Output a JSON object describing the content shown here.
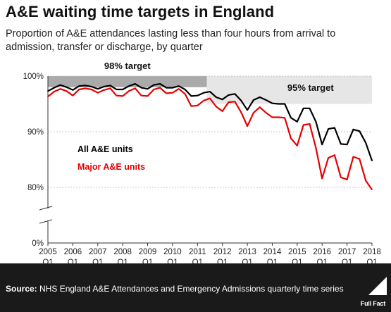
{
  "header": {
    "title": "A&E waiting time targets in England",
    "subtitle": "Proportion of A&E attendances lasting less than four hours from arrival to admission, transfer or discharge, by quarter"
  },
  "footer": {
    "source_label": "Source:",
    "source_text": "NHS England A&E Attendances and Emergency Admissions quarterly time series",
    "logo_text": "Full Fact"
  },
  "colors": {
    "all_units": "#000000",
    "major_units": "#e60000",
    "target_98_band": "#aaaaaa",
    "target_95_band": "#e6e6e6",
    "grid": "#c8c8c8",
    "footer_bg": "#1a1a1a"
  },
  "chart_data": {
    "type": "line",
    "ylim": [
      0,
      100
    ],
    "y_ticks": [
      {
        "value": 100,
        "label": "100%"
      },
      {
        "value": 90,
        "label": "90%"
      },
      {
        "value": 80,
        "label": "80%"
      },
      {
        "value": 0,
        "label": "0%"
      }
    ],
    "y_axis_break": "between 0% and 80%",
    "x_ticks": [
      {
        "year": "2005",
        "quarter": "Q1"
      },
      {
        "year": "2006",
        "quarter": "Q1"
      },
      {
        "year": "2007",
        "quarter": "Q1"
      },
      {
        "year": "2008",
        "quarter": "Q1"
      },
      {
        "year": "2009",
        "quarter": "Q1"
      },
      {
        "year": "2010",
        "quarter": "Q1"
      },
      {
        "year": "2011",
        "quarter": "Q1"
      },
      {
        "year": "2012",
        "quarter": "Q1"
      },
      {
        "year": "2013",
        "quarter": "Q1"
      },
      {
        "year": "2014",
        "quarter": "Q1"
      },
      {
        "year": "2015",
        "quarter": "Q1"
      },
      {
        "year": "2016",
        "quarter": "Q1"
      },
      {
        "year": "2017",
        "quarter": "Q1"
      },
      {
        "year": "2018",
        "quarter": "Q1"
      }
    ],
    "x": [
      "2005 Q1",
      "2005 Q2",
      "2005 Q3",
      "2005 Q4",
      "2006 Q1",
      "2006 Q2",
      "2006 Q3",
      "2006 Q4",
      "2007 Q1",
      "2007 Q2",
      "2007 Q3",
      "2007 Q4",
      "2008 Q1",
      "2008 Q2",
      "2008 Q3",
      "2008 Q4",
      "2009 Q1",
      "2009 Q2",
      "2009 Q3",
      "2009 Q4",
      "2010 Q1",
      "2010 Q2",
      "2010 Q3",
      "2010 Q4",
      "2011 Q1",
      "2011 Q2",
      "2011 Q3",
      "2011 Q4",
      "2012 Q1",
      "2012 Q2",
      "2012 Q3",
      "2012 Q4",
      "2013 Q1",
      "2013 Q2",
      "2013 Q3",
      "2013 Q4",
      "2014 Q1",
      "2014 Q2",
      "2014 Q3",
      "2014 Q4",
      "2015 Q1",
      "2015 Q2",
      "2015 Q3",
      "2015 Q4",
      "2016 Q1",
      "2016 Q2",
      "2016 Q3",
      "2016 Q4",
      "2017 Q1",
      "2017 Q2",
      "2017 Q3",
      "2017 Q4",
      "2018 Q1"
    ],
    "series": [
      {
        "name": "All A&E units",
        "color": "#000000",
        "values": [
          97.3,
          97.9,
          98.4,
          98.0,
          97.5,
          98.2,
          98.3,
          98.1,
          97.7,
          98.1,
          98.3,
          97.6,
          97.6,
          98.2,
          98.6,
          97.9,
          97.7,
          98.4,
          98.6,
          97.9,
          97.9,
          98.2,
          97.6,
          96.4,
          96.5,
          97.0,
          97.2,
          96.2,
          95.8,
          96.6,
          96.8,
          95.6,
          93.9,
          95.7,
          96.2,
          95.7,
          95.1,
          95.0,
          95.0,
          92.5,
          91.8,
          94.2,
          94.2,
          91.8,
          87.7,
          90.5,
          90.7,
          87.8,
          87.7,
          90.4,
          90.1,
          88.0,
          84.8
        ]
      },
      {
        "name": "Major A&E units",
        "color": "#e60000",
        "values": [
          96.3,
          97.2,
          97.7,
          97.3,
          96.5,
          97.6,
          97.8,
          97.6,
          97.0,
          97.5,
          97.8,
          96.5,
          96.4,
          97.3,
          97.8,
          96.5,
          96.4,
          97.6,
          97.9,
          96.9,
          97.0,
          97.7,
          96.8,
          94.6,
          94.7,
          95.6,
          96.0,
          94.5,
          93.7,
          95.3,
          95.4,
          93.5,
          91.0,
          93.4,
          94.4,
          93.4,
          92.6,
          92.6,
          92.5,
          88.8,
          87.5,
          91.2,
          91.4,
          87.1,
          81.6,
          85.3,
          85.8,
          81.8,
          81.4,
          85.5,
          85.1,
          81.2,
          76.8
        ]
      }
    ],
    "annotations": [
      {
        "label": "98% target",
        "value": 98,
        "from": "2005 Q1",
        "to": "2011 Q2"
      },
      {
        "label": "95% target",
        "value": 95,
        "from": "2011 Q3",
        "to": "2018 Q1"
      }
    ],
    "legend_position": "inside, left-middle",
    "grid": true
  }
}
